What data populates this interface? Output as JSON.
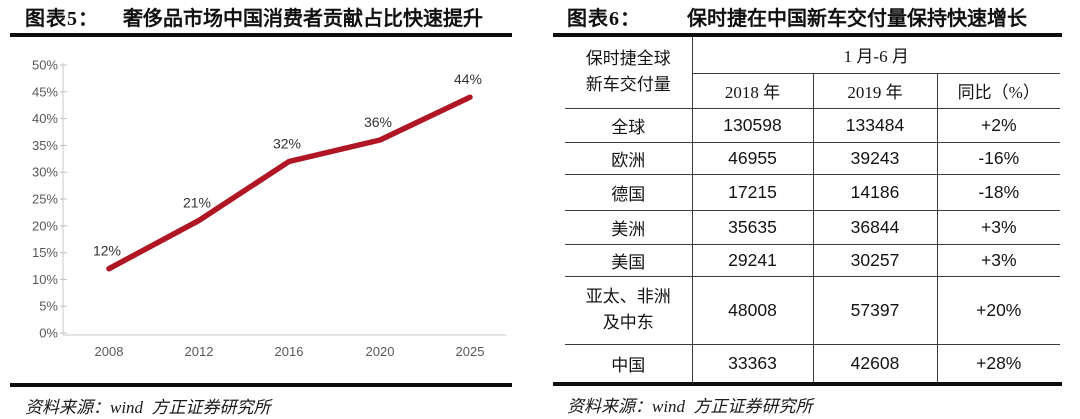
{
  "panels": {
    "left": {
      "caption_label": "图表5：",
      "caption_title": "奢侈品市场中国消费者贡献占比快速提升",
      "source": "资料来源：wind  方正证券研究所"
    },
    "right": {
      "caption_label": "图表6：",
      "caption_title": "保时捷在中国新车交付量保持快速增长",
      "source": "资料来源：wind  方正证券研究所"
    }
  },
  "chart_data": {
    "type": "line",
    "title": "奢侈品市场中国消费者贡献占比快速提升",
    "categories": [
      "2008",
      "2012",
      "2016",
      "2020",
      "2025"
    ],
    "values": [
      12,
      21,
      32,
      36,
      44
    ],
    "data_labels": [
      "12%",
      "21%",
      "32%",
      "36%",
      "44%"
    ],
    "yticks": [
      "50%",
      "45%",
      "40%",
      "35%",
      "30%",
      "25%",
      "20%",
      "15%",
      "10%",
      "5%",
      "0%"
    ],
    "ylim": [
      0,
      50
    ],
    "xlabel": "",
    "ylabel": "",
    "grid": false,
    "legend_position": "none",
    "line_color": "#b01624"
  },
  "table": {
    "title": "保时捷在中国新车交付量保持快速增长",
    "corner_header": "保时捷全球\n新车交付量",
    "span_header": "1 月-6 月",
    "col_headers": [
      "2018 年",
      "2019 年",
      "同比（%）"
    ],
    "rows": [
      {
        "region": "全球",
        "y2018": "130598",
        "y2019": "133484",
        "yoy": "+2%"
      },
      {
        "region": "欧洲",
        "y2018": "46955",
        "y2019": "39243",
        "yoy": "-16%"
      },
      {
        "region": "德国",
        "y2018": "17215",
        "y2019": "14186",
        "yoy": "-18%"
      },
      {
        "region": "美洲",
        "y2018": "35635",
        "y2019": "36844",
        "yoy": "+3%"
      },
      {
        "region": "美国",
        "y2018": "29241",
        "y2019": "30257",
        "yoy": "+3%"
      },
      {
        "region": "亚太、非洲\n及中东",
        "y2018": "48008",
        "y2019": "57397",
        "yoy": "+20%"
      },
      {
        "region": "中国",
        "y2018": "33363",
        "y2019": "42608",
        "yoy": "+28%"
      }
    ]
  }
}
